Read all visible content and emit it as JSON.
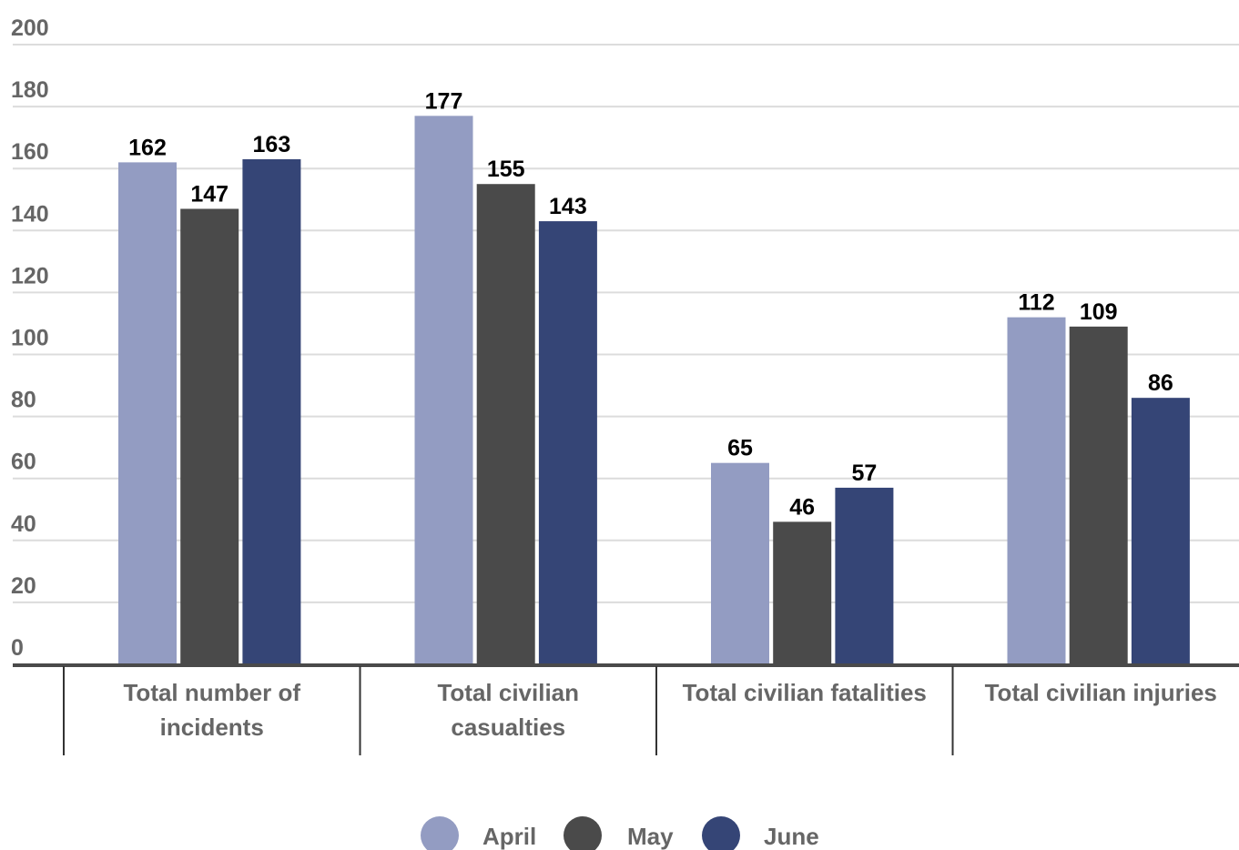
{
  "chart_data": {
    "type": "bar",
    "categories": [
      [
        "Total number of",
        "incidents"
      ],
      [
        "Total civilian",
        "casualties"
      ],
      [
        "Total civilian fatalities"
      ],
      [
        "Total civilian injuries"
      ]
    ],
    "series": [
      {
        "name": "April",
        "color": "#939cc2",
        "values": [
          162,
          177,
          65,
          112
        ]
      },
      {
        "name": "May",
        "color": "#4a4a4a",
        "values": [
          147,
          155,
          46,
          109
        ]
      },
      {
        "name": "June",
        "color": "#354576",
        "values": [
          163,
          143,
          57,
          86
        ]
      }
    ],
    "y_ticks": [
      "0",
      "20",
      "40",
      "60",
      "80",
      "100",
      "120",
      "140",
      "160",
      "180",
      "200"
    ],
    "ylim": [
      0,
      200
    ],
    "grid": true,
    "legend_position": "bottom-center",
    "title": "",
    "xlabel": "",
    "ylabel": ""
  }
}
